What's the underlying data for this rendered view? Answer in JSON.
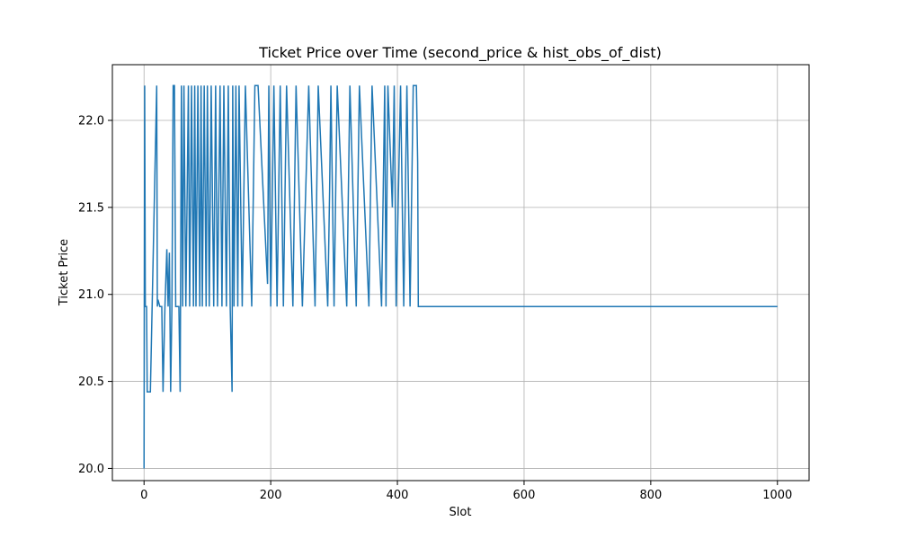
{
  "chart_data": {
    "type": "line",
    "title": "Ticket Price over Time (second_price & hist_obs_of_dist)",
    "xlabel": "Slot",
    "ylabel": "Ticket Price",
    "xlim": [
      -50,
      1050
    ],
    "ylim": [
      19.93,
      22.32
    ],
    "xticks": [
      0,
      200,
      400,
      600,
      800,
      1000
    ],
    "yticks": [
      20.0,
      20.5,
      21.0,
      21.5,
      22.0
    ],
    "xtick_labels": [
      "0",
      "200",
      "400",
      "600",
      "800",
      "1000"
    ],
    "ytick_labels": [
      "20.0",
      "20.5",
      "21.0",
      "21.5",
      "22.0"
    ],
    "grid": true,
    "legend": "none",
    "colors": {
      "series": "#1f77b4",
      "grid": "#b0b0b0",
      "axes": "#000000"
    },
    "series": [
      {
        "values_note_free": true,
        "levels": {
          "high": 22.2,
          "low": 20.93,
          "dip": 20.44
        },
        "x": [
          0,
          1,
          2,
          3,
          4,
          5,
          6,
          7,
          10,
          20,
          21,
          22,
          25,
          28,
          30,
          33,
          36,
          38,
          40,
          42,
          44,
          46,
          48,
          50,
          52,
          55,
          57,
          59,
          61,
          63,
          66,
          70,
          72,
          75,
          78,
          80,
          82,
          85,
          88,
          90,
          92,
          95,
          98,
          100,
          103,
          106,
          110,
          113,
          116,
          120,
          123,
          126,
          130,
          133,
          136,
          139,
          140,
          142,
          145,
          148,
          150,
          155,
          160,
          170,
          175,
          180,
          195,
          197,
          200,
          205,
          210,
          215,
          220,
          225,
          235,
          240,
          250,
          260,
          270,
          275,
          290,
          293,
          295,
          300,
          305,
          320,
          325,
          335,
          340,
          355,
          360,
          375,
          380,
          382,
          385,
          392,
          395,
          398,
          405,
          410,
          415,
          420,
          425,
          430,
          432,
          433,
          1000
        ],
        "y": [
          20.0,
          22.2,
          20.93,
          20.93,
          20.93,
          20.44,
          20.44,
          20.44,
          20.44,
          22.2,
          20.93,
          20.97,
          20.93,
          20.93,
          20.44,
          20.93,
          21.26,
          20.93,
          21.24,
          20.44,
          20.93,
          22.2,
          22.2,
          20.93,
          20.93,
          20.93,
          20.44,
          22.2,
          20.93,
          22.2,
          20.93,
          22.2,
          20.93,
          22.2,
          20.93,
          22.2,
          20.93,
          22.2,
          20.93,
          22.2,
          20.93,
          22.2,
          20.93,
          22.2,
          20.93,
          22.2,
          20.93,
          22.2,
          20.93,
          22.2,
          20.93,
          22.2,
          20.93,
          22.2,
          20.93,
          20.44,
          22.2,
          20.93,
          22.2,
          20.93,
          22.2,
          20.93,
          22.2,
          20.93,
          22.2,
          22.2,
          21.06,
          22.2,
          20.93,
          22.2,
          20.93,
          22.2,
          20.93,
          22.2,
          20.93,
          22.2,
          20.93,
          22.2,
          20.93,
          22.2,
          20.93,
          21.6,
          22.2,
          20.93,
          22.2,
          20.93,
          22.2,
          20.93,
          22.2,
          20.93,
          22.2,
          20.93,
          22.2,
          20.93,
          22.2,
          21.5,
          22.2,
          20.93,
          22.2,
          20.93,
          22.2,
          20.93,
          22.2,
          22.2,
          21.76,
          20.93,
          20.93
        ]
      }
    ]
  }
}
